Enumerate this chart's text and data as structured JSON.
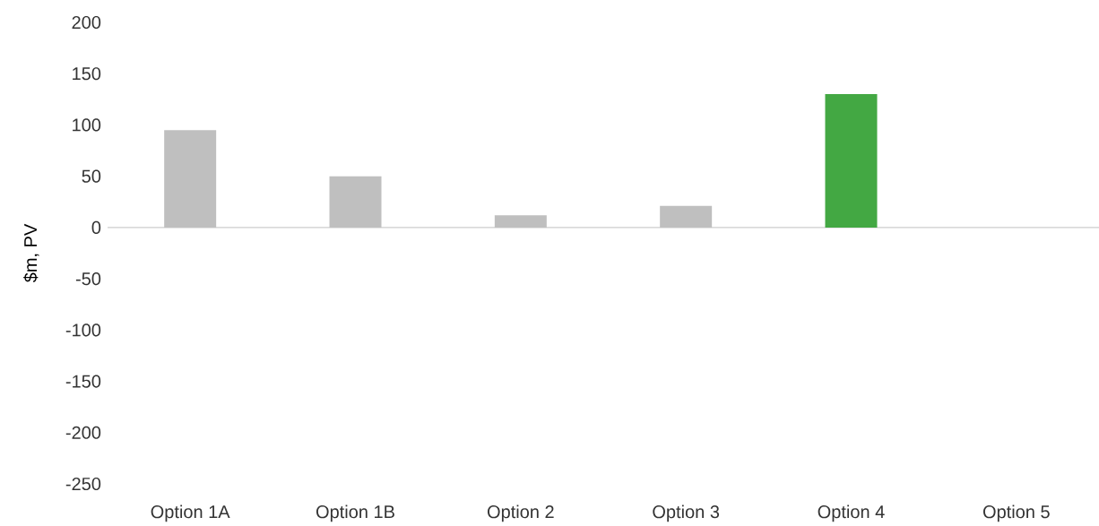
{
  "chart_data": {
    "type": "bar",
    "ylabel": "$m, PV",
    "categories": [
      "Option 1A",
      "Option 1B",
      "Option 2",
      "Option 3",
      "Option 4",
      "Option 5"
    ],
    "values": [
      95,
      50,
      12,
      21,
      130,
      0
    ],
    "colors": [
      "#bfbfbf",
      "#bfbfbf",
      "#bfbfbf",
      "#bfbfbf",
      "#43a843",
      "#bfbfbf"
    ],
    "ylim": [
      -250,
      200
    ],
    "yticks": [
      -250,
      -200,
      -150,
      -100,
      -50,
      0,
      50,
      100,
      150,
      200
    ]
  }
}
